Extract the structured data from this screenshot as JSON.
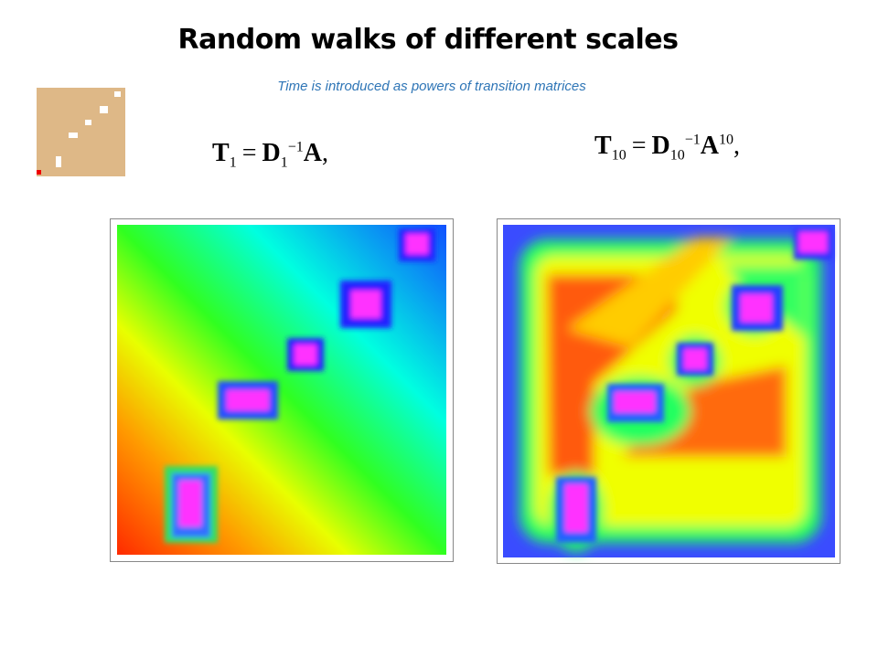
{
  "header": {
    "title": "Random walks of different scales",
    "subtitle": "Time is introduced as  powers of transition matrices"
  },
  "equations": [
    {
      "lhs": "T",
      "lhs_sub": "1",
      "op": "=",
      "d": "D",
      "d_sub": "1",
      "d_sup": "−1",
      "a": "A",
      "end": ","
    },
    {
      "lhs": "T",
      "lhs_sub": "10",
      "op": "=",
      "d": "D",
      "d_sub": "10",
      "d_sup": "−1",
      "a": "A",
      "a_sup": "10",
      "end": ","
    }
  ]
}
